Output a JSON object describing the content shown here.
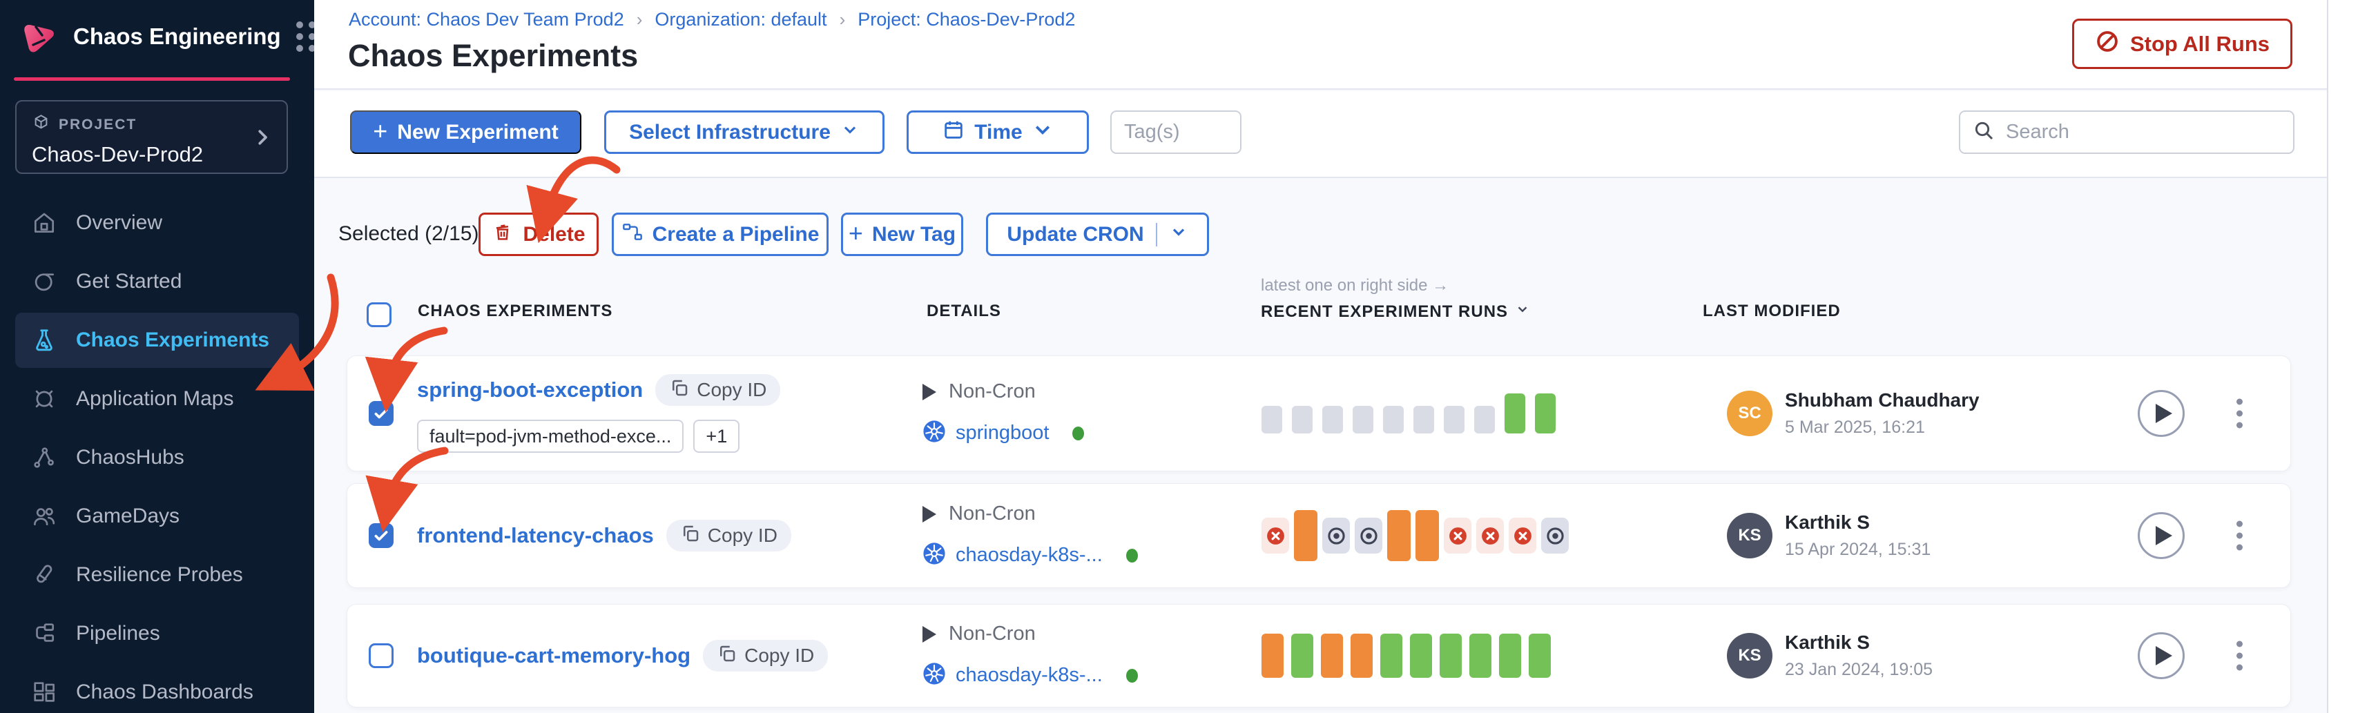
{
  "app": {
    "title": "Chaos Engineering"
  },
  "colors": {
    "brand_pink": "#e73066",
    "primary_blue": "#3b74d6",
    "link_blue": "#2e6cd0",
    "danger_red": "#b8281c",
    "annotation_red": "#e7492b",
    "success_green": "#74c158",
    "warn_orange": "#ee8a3a",
    "sidebar_bg": "#0d1b2e"
  },
  "sidebar": {
    "project": {
      "label": "PROJECT",
      "name": "Chaos-Dev-Prod2"
    },
    "items": [
      {
        "label": "Overview",
        "icon": "home-icon",
        "active": false
      },
      {
        "label": "Get Started",
        "icon": "get-started-icon",
        "active": false
      },
      {
        "label": "Chaos Experiments",
        "icon": "flask-icon",
        "active": true
      },
      {
        "label": "Application Maps",
        "icon": "application-maps-icon",
        "active": false
      },
      {
        "label": "ChaosHubs",
        "icon": "chaoshubs-icon",
        "active": false
      },
      {
        "label": "GameDays",
        "icon": "gamedays-icon",
        "active": false
      },
      {
        "label": "Resilience Probes",
        "icon": "probes-icon",
        "active": false
      },
      {
        "label": "Pipelines",
        "icon": "pipelines-icon",
        "active": false
      },
      {
        "label": "Chaos Dashboards",
        "icon": "dashboards-icon",
        "active": false
      }
    ]
  },
  "breadcrumb": {
    "items": [
      "Account: Chaos Dev Team Prod2",
      "Organization: default",
      "Project: Chaos-Dev-Prod2"
    ],
    "separator": "›"
  },
  "header": {
    "title": "Chaos Experiments",
    "stop_all_runs": "Stop All Runs"
  },
  "toolbar": {
    "new_experiment": "New Experiment",
    "select_infrastructure": "Select Infrastructure",
    "time": "Time",
    "tags_placeholder": "Tag(s)",
    "search_placeholder": "Search"
  },
  "selection_bar": {
    "selected_label": "Selected (2/15)",
    "delete": "Delete",
    "create_pipeline": "Create a Pipeline",
    "new_tag": "New Tag",
    "update_cron": "Update CRON"
  },
  "table": {
    "runs_note": "latest one on right side →",
    "columns": {
      "experiments": "CHAOS EXPERIMENTS",
      "details": "DETAILS",
      "runs": "RECENT EXPERIMENT RUNS",
      "last_modified": "LAST MODIFIED"
    }
  },
  "rows": [
    {
      "name": "spring-boot-exception",
      "copy_id": "Copy ID",
      "checked": true,
      "tags": [
        "fault=pod-jvm-method-exce...",
        "+1"
      ],
      "schedule": "Non-Cron",
      "infrastructure": "springboot",
      "runs": [
        "gray-s",
        "gray-s",
        "gray-s",
        "gray-s",
        "gray-s",
        "gray-s",
        "gray-s",
        "gray-s",
        "green-m",
        "green-m"
      ],
      "user": {
        "initials": "SC",
        "name": "Shubham Chaudhary",
        "date": "5 Mar 2025, 16:21",
        "avatar_color": "#f0a33b"
      }
    },
    {
      "name": "frontend-latency-chaos",
      "copy_id": "Copy ID",
      "checked": true,
      "tags": [],
      "schedule": "Non-Cron",
      "infrastructure": "chaosday-k8s-...",
      "runs": [
        "chip-failed",
        "orange-xl",
        "chip-stopped",
        "chip-stopped",
        "orange-xl",
        "orange-xl",
        "chip-failed",
        "chip-failed",
        "chip-failed",
        "chip-stopped"
      ],
      "user": {
        "initials": "KS",
        "name": "Karthik S",
        "date": "15 Apr 2024, 15:31",
        "avatar_color": "#4d5365"
      }
    },
    {
      "name": "boutique-cart-memory-hog",
      "copy_id": "Copy ID",
      "checked": false,
      "tags": [],
      "schedule": "Non-Cron",
      "infrastructure": "chaosday-k8s-...",
      "runs": [
        "orange-l",
        "green-l",
        "orange-l",
        "orange-l",
        "green-l",
        "green-l",
        "green-l",
        "green-l",
        "green-l",
        "green-l"
      ],
      "user": {
        "initials": "KS",
        "name": "Karthik S",
        "date": "23 Jan 2024, 19:05",
        "avatar_color": "#4d5365"
      }
    }
  ]
}
